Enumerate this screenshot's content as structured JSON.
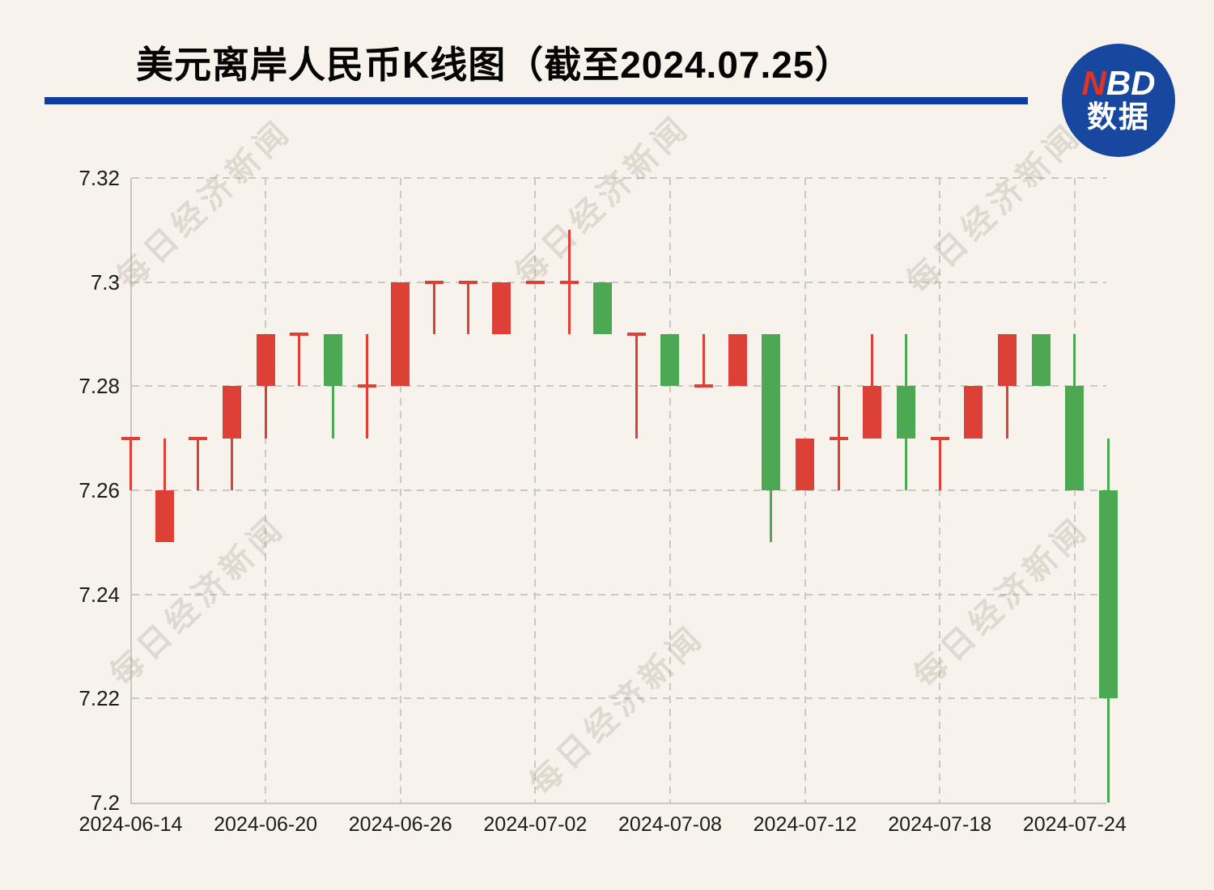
{
  "header": {
    "title": "美元离岸人民币K线图（截至2024.07.25）"
  },
  "logo": {
    "n": "N",
    "bd": "BD",
    "sub": "数据"
  },
  "watermark": {
    "text": "每日经济新闻"
  },
  "chart_data": {
    "type": "candlestick",
    "title": "美元离岸人民币K线图（截至2024.07.25）",
    "ylim": [
      7.2,
      7.32
    ],
    "grid": true,
    "colors": {
      "up": "#dc4037",
      "down": "#4da853"
    },
    "y_ticks": [
      {
        "label": "7.32",
        "price": 7.32
      },
      {
        "label": "7.3",
        "price": 7.3
      },
      {
        "label": "7.28",
        "price": 7.28
      },
      {
        "label": "7.26",
        "price": 7.26
      },
      {
        "label": "7.24",
        "price": 7.24
      },
      {
        "label": "7.22",
        "price": 7.22
      },
      {
        "label": "7.2",
        "price": 7.2
      }
    ],
    "x_ticks": [
      {
        "label": "2024-06-14",
        "index": 0
      },
      {
        "label": "2024-06-20",
        "index": 4
      },
      {
        "label": "2024-06-26",
        "index": 8
      },
      {
        "label": "2024-07-02",
        "index": 12
      },
      {
        "label": "2024-07-08",
        "index": 16
      },
      {
        "label": "2024-07-12",
        "index": 20
      },
      {
        "label": "2024-07-18",
        "index": 24
      },
      {
        "label": "2024-07-24",
        "index": 28
      }
    ],
    "candles": [
      {
        "date": "2024-06-14",
        "open": 7.27,
        "close": 7.27,
        "high": 7.27,
        "low": 7.26,
        "color": "up"
      },
      {
        "date": "2024-06-17",
        "open": 7.25,
        "close": 7.26,
        "high": 7.27,
        "low": 7.25,
        "color": "up"
      },
      {
        "date": "2024-06-18",
        "open": 7.27,
        "close": 7.27,
        "high": 7.27,
        "low": 7.26,
        "color": "up"
      },
      {
        "date": "2024-06-19",
        "open": 7.27,
        "close": 7.28,
        "high": 7.28,
        "low": 7.26,
        "color": "up"
      },
      {
        "date": "2024-06-20",
        "open": 7.28,
        "close": 7.29,
        "high": 7.29,
        "low": 7.27,
        "color": "up"
      },
      {
        "date": "2024-06-21",
        "open": 7.29,
        "close": 7.29,
        "high": 7.29,
        "low": 7.28,
        "color": "up"
      },
      {
        "date": "2024-06-24",
        "open": 7.29,
        "close": 7.28,
        "high": 7.29,
        "low": 7.27,
        "color": "down"
      },
      {
        "date": "2024-06-25",
        "open": 7.28,
        "close": 7.28,
        "high": 7.29,
        "low": 7.27,
        "color": "up"
      },
      {
        "date": "2024-06-26",
        "open": 7.28,
        "close": 7.3,
        "high": 7.3,
        "low": 7.28,
        "color": "up"
      },
      {
        "date": "2024-06-27",
        "open": 7.3,
        "close": 7.3,
        "high": 7.3,
        "low": 7.29,
        "color": "up"
      },
      {
        "date": "2024-06-28",
        "open": 7.3,
        "close": 7.3,
        "high": 7.3,
        "low": 7.29,
        "color": "up"
      },
      {
        "date": "2024-07-01",
        "open": 7.29,
        "close": 7.3,
        "high": 7.3,
        "low": 7.29,
        "color": "up"
      },
      {
        "date": "2024-07-02",
        "open": 7.3,
        "close": 7.3,
        "high": 7.3,
        "low": 7.3,
        "color": "up"
      },
      {
        "date": "2024-07-03",
        "open": 7.3,
        "close": 7.3,
        "high": 7.31,
        "low": 7.29,
        "color": "up"
      },
      {
        "date": "2024-07-04",
        "open": 7.3,
        "close": 7.29,
        "high": 7.3,
        "low": 7.29,
        "color": "down"
      },
      {
        "date": "2024-07-05",
        "open": 7.29,
        "close": 7.29,
        "high": 7.29,
        "low": 7.27,
        "color": "up"
      },
      {
        "date": "2024-07-08",
        "open": 7.29,
        "close": 7.28,
        "high": 7.29,
        "low": 7.28,
        "color": "down"
      },
      {
        "date": "2024-07-09",
        "open": 7.28,
        "close": 7.28,
        "high": 7.29,
        "low": 7.28,
        "color": "up"
      },
      {
        "date": "2024-07-10",
        "open": 7.28,
        "close": 7.29,
        "high": 7.29,
        "low": 7.28,
        "color": "up"
      },
      {
        "date": "2024-07-11",
        "open": 7.29,
        "close": 7.26,
        "high": 7.29,
        "low": 7.25,
        "color": "down"
      },
      {
        "date": "2024-07-12",
        "open": 7.26,
        "close": 7.27,
        "high": 7.27,
        "low": 7.26,
        "color": "up"
      },
      {
        "date": "2024-07-15",
        "open": 7.27,
        "close": 7.27,
        "high": 7.28,
        "low": 7.26,
        "color": "up"
      },
      {
        "date": "2024-07-16",
        "open": 7.27,
        "close": 7.28,
        "high": 7.29,
        "low": 7.27,
        "color": "up"
      },
      {
        "date": "2024-07-17",
        "open": 7.28,
        "close": 7.27,
        "high": 7.29,
        "low": 7.26,
        "color": "down"
      },
      {
        "date": "2024-07-18",
        "open": 7.27,
        "close": 7.27,
        "high": 7.27,
        "low": 7.26,
        "color": "up"
      },
      {
        "date": "2024-07-19",
        "open": 7.27,
        "close": 7.28,
        "high": 7.28,
        "low": 7.27,
        "color": "up"
      },
      {
        "date": "2024-07-22",
        "open": 7.28,
        "close": 7.29,
        "high": 7.29,
        "low": 7.27,
        "color": "up"
      },
      {
        "date": "2024-07-23",
        "open": 7.29,
        "close": 7.28,
        "high": 7.29,
        "low": 7.28,
        "color": "down"
      },
      {
        "date": "2024-07-24",
        "open": 7.28,
        "close": 7.26,
        "high": 7.29,
        "low": 7.26,
        "color": "down"
      },
      {
        "date": "2024-07-25",
        "open": 7.26,
        "close": 7.22,
        "high": 7.27,
        "low": 7.2,
        "color": "down"
      }
    ]
  }
}
